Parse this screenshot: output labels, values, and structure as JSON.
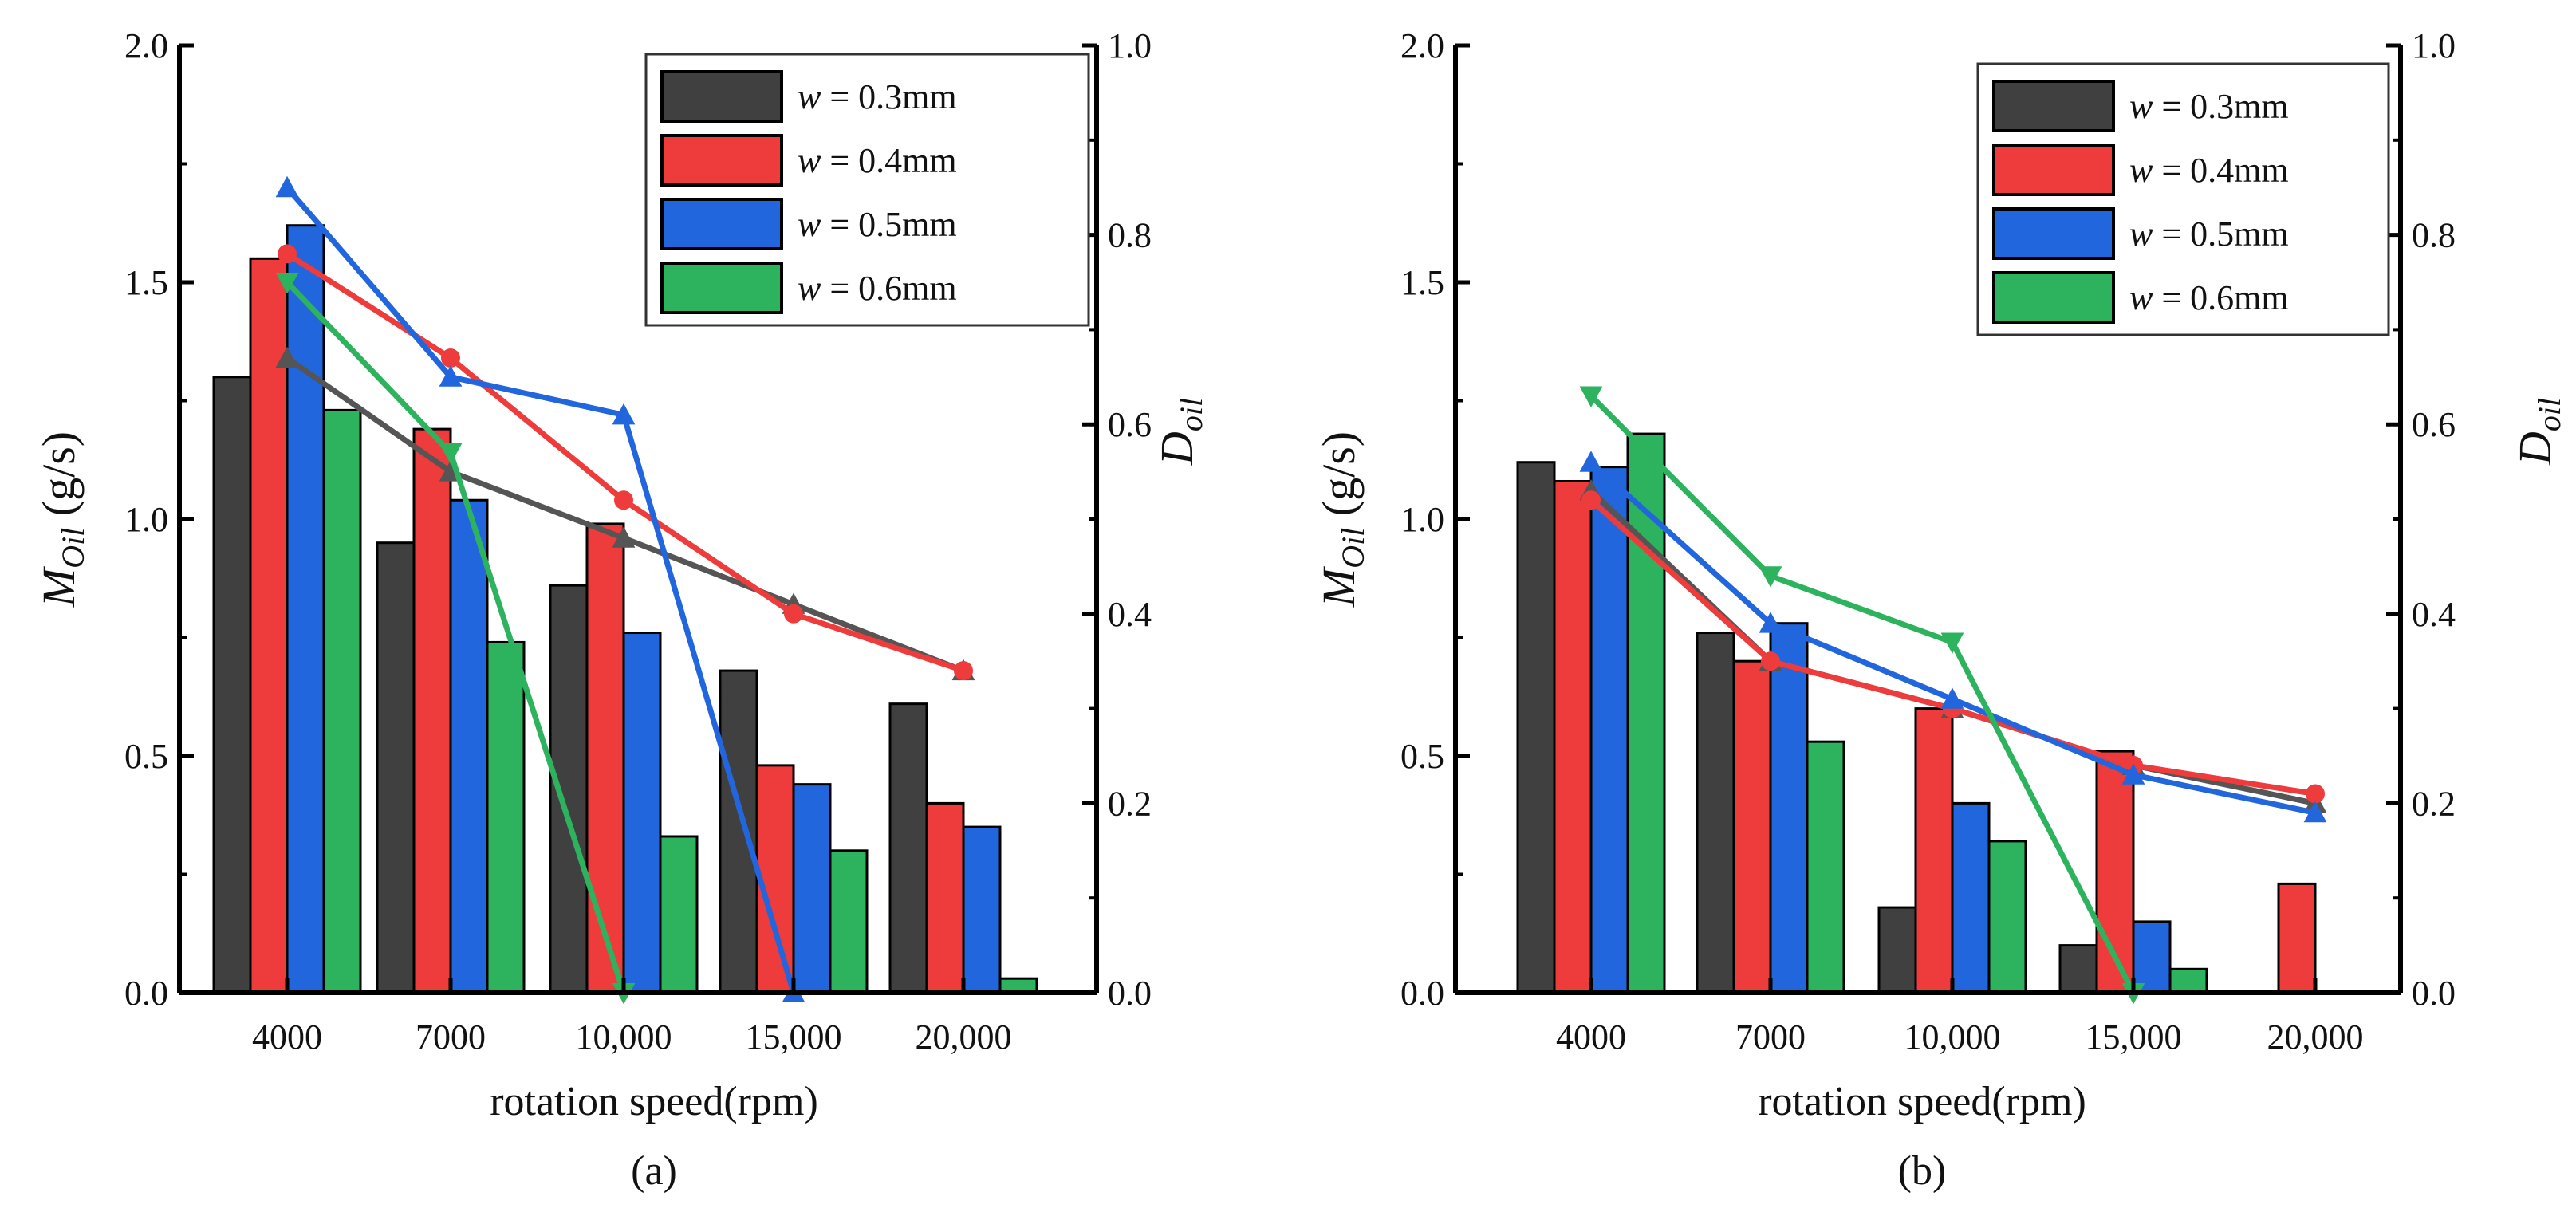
{
  "chart_data": [
    {
      "type": "bar",
      "panel_label": "(a)",
      "categories": [
        "4000",
        "7000",
        "10,000",
        "15,000",
        "20,000"
      ],
      "xlabel": "rotation speed(rpm)",
      "ylabel_left_main": "M",
      "ylabel_left_sub": "Oil",
      "ylabel_left_unit": " (g/s)",
      "ylabel_right_main": "D",
      "ylabel_right_sub": "oil",
      "ylim_left": [
        0,
        2.0
      ],
      "yticks_left": [
        "0.0",
        "0.5",
        "1.0",
        "1.5",
        "2.0"
      ],
      "ylim_right": [
        0,
        1.0
      ],
      "yticks_right": [
        "0.0",
        "0.2",
        "0.4",
        "0.6",
        "0.8",
        "1.0"
      ],
      "legend_position": "top-right",
      "bar_series": [
        {
          "name": "w = 0.3mm",
          "w_label": "w",
          "rest_label": " = 0.3mm",
          "color": "#404040",
          "values": [
            1.3,
            0.95,
            0.86,
            0.68,
            0.61
          ]
        },
        {
          "name": "w = 0.4mm",
          "w_label": "w",
          "rest_label": " = 0.4mm",
          "color": "#ee3b3b",
          "values": [
            1.55,
            1.19,
            0.99,
            0.48,
            0.4
          ]
        },
        {
          "name": "w = 0.5mm",
          "w_label": "w",
          "rest_label": " = 0.5mm",
          "color": "#2266dd",
          "values": [
            1.62,
            1.04,
            0.76,
            0.44,
            0.35
          ]
        },
        {
          "name": "w = 0.6mm",
          "w_label": "w",
          "rest_label": " = 0.6mm",
          "color": "#2db35d",
          "values": [
            1.23,
            0.74,
            0.33,
            0.3,
            0.03
          ]
        }
      ],
      "line_series": [
        {
          "name": "w = 0.3mm",
          "color": "#555555",
          "marker": "triangle-up",
          "values": [
            0.67,
            0.55,
            0.48,
            0.41,
            0.34
          ]
        },
        {
          "name": "w = 0.4mm",
          "color": "#ee3b3b",
          "marker": "circle",
          "values": [
            0.78,
            0.67,
            0.52,
            0.4,
            0.34
          ]
        },
        {
          "name": "w = 0.5mm",
          "color": "#2266dd",
          "marker": "triangle-up",
          "values": [
            0.85,
            0.65,
            0.61,
            0.0
          ]
        },
        {
          "name": "w = 0.6mm",
          "color": "#2db35d",
          "marker": "triangle-down",
          "values": [
            0.75,
            0.57,
            0.0
          ]
        }
      ]
    },
    {
      "type": "bar",
      "panel_label": "(b)",
      "categories": [
        "4000",
        "7000",
        "10,000",
        "15,000",
        "20,000"
      ],
      "xlabel": "rotation speed(rpm)",
      "ylabel_left_main": "M",
      "ylabel_left_sub": "Oil",
      "ylabel_left_unit": " (g/s)",
      "ylabel_right_main": "D",
      "ylabel_right_sub": "oil",
      "ylim_left": [
        0,
        2.0
      ],
      "yticks_left": [
        "0.0",
        "0.5",
        "1.0",
        "1.5",
        "2.0"
      ],
      "ylim_right": [
        0,
        1.0
      ],
      "yticks_right": [
        "0.0",
        "0.2",
        "0.4",
        "0.6",
        "0.8",
        "1.0"
      ],
      "legend_position": "top-right",
      "bar_series": [
        {
          "name": "w = 0.3mm",
          "w_label": "w",
          "rest_label": " = 0.3mm",
          "color": "#404040",
          "values": [
            1.12,
            0.76,
            0.18,
            0.1,
            0.0
          ]
        },
        {
          "name": "w = 0.4mm",
          "w_label": "w",
          "rest_label": " = 0.4mm",
          "color": "#ee3b3b",
          "values": [
            1.08,
            0.7,
            0.6,
            0.51,
            0.23
          ]
        },
        {
          "name": "w = 0.5mm",
          "w_label": "w",
          "rest_label": " = 0.5mm",
          "color": "#2266dd",
          "values": [
            1.11,
            0.78,
            0.4,
            0.15,
            0.0
          ]
        },
        {
          "name": "w = 0.6mm",
          "w_label": "w",
          "rest_label": " = 0.6mm",
          "color": "#2db35d",
          "values": [
            1.18,
            0.53,
            0.32,
            0.05,
            0.0
          ]
        }
      ],
      "line_series": [
        {
          "name": "w = 0.3mm",
          "color": "#555555",
          "marker": "triangle-up",
          "values": [
            0.53,
            0.35,
            0.3,
            0.24,
            0.2
          ]
        },
        {
          "name": "w = 0.4mm",
          "color": "#ee3b3b",
          "marker": "circle",
          "values": [
            0.52,
            0.35,
            0.3,
            0.24,
            0.21
          ]
        },
        {
          "name": "w = 0.5mm",
          "color": "#2266dd",
          "marker": "triangle-up",
          "values": [
            0.56,
            0.39,
            0.31,
            0.23,
            0.19
          ]
        },
        {
          "name": "w = 0.6mm",
          "color": "#2db35d",
          "marker": "triangle-down",
          "values": [
            0.63,
            0.44,
            0.37,
            0.0
          ]
        }
      ]
    }
  ]
}
